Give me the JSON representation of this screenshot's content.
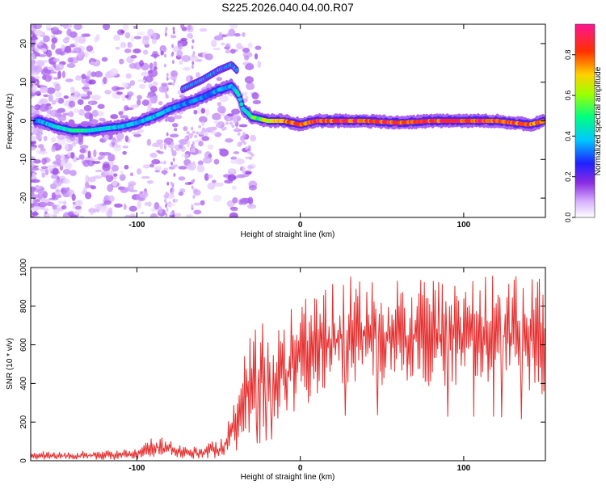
{
  "title": "S225.2026.040.04.00.R07",
  "colors": {
    "line": "#e53030",
    "axis": "#000000",
    "background": "#ffffff"
  },
  "chart_data": [
    {
      "type": "heatmap",
      "xlabel": "Height of straight line (km)",
      "ylabel": "Frequency (Hz)",
      "xlim": [
        -165,
        150
      ],
      "ylim": [
        -25,
        25
      ],
      "xticks": [
        -100,
        0,
        100
      ],
      "yticks": [
        -20,
        -10,
        0,
        10,
        20
      ],
      "colorbar": {
        "label": "Normalized spectral amplitude",
        "range": [
          0,
          0.95
        ],
        "ticks": [
          0.0,
          0.2,
          0.4,
          0.6,
          0.8
        ],
        "colormap": "white-purple-blue-cyan-green-yellow-red-magenta"
      },
      "ridge": {
        "x": [
          -160,
          -150,
          -140,
          -130,
          -120,
          -110,
          -100,
          -90,
          -80,
          -70,
          -60,
          -50,
          -42,
          -38,
          -35,
          -32,
          -30,
          -25,
          -20,
          -10,
          0,
          10,
          20,
          40,
          60,
          80,
          100,
          120,
          140,
          150
        ],
        "y": [
          0,
          -1.5,
          -2.5,
          -2.5,
          -2,
          -1.5,
          -0.5,
          1,
          3,
          4.5,
          6,
          8,
          9,
          7,
          3,
          2,
          1,
          0.5,
          0,
          0,
          -1,
          0,
          0,
          0,
          -0.5,
          0,
          0,
          0,
          -1,
          0
        ],
        "amplitude": [
          0.35,
          0.45,
          0.5,
          0.5,
          0.45,
          0.4,
          0.4,
          0.4,
          0.38,
          0.35,
          0.35,
          0.38,
          0.4,
          0.45,
          0.45,
          0.5,
          0.55,
          0.6,
          0.7,
          0.8,
          0.85,
          0.9,
          0.9,
          0.9,
          0.9,
          0.9,
          0.9,
          0.9,
          0.85,
          0.8
        ]
      }
    },
    {
      "type": "line",
      "xlabel": "Height of straight line (km)",
      "ylabel": "SNR (10 * v/v)",
      "xlim": [
        -165,
        150
      ],
      "ylim": [
        0,
        1000
      ],
      "xticks": [
        -100,
        0,
        100
      ],
      "yticks": [
        0,
        200,
        400,
        600,
        800,
        1000
      ],
      "envelope": {
        "x": [
          -165,
          -140,
          -120,
          -100,
          -95,
          -90,
          -80,
          -70,
          -60,
          -50,
          -45,
          -40,
          -35,
          -30,
          -25,
          -20,
          -10,
          0,
          10,
          20,
          30,
          40,
          60,
          80,
          100,
          120,
          140,
          150
        ],
        "lo": [
          5,
          5,
          5,
          5,
          10,
          20,
          20,
          10,
          10,
          15,
          30,
          80,
          120,
          150,
          150,
          180,
          200,
          250,
          300,
          350,
          400,
          400,
          380,
          380,
          380,
          380,
          350,
          300
        ],
        "hi": [
          50,
          50,
          55,
          60,
          90,
          130,
          120,
          70,
          80,
          120,
          160,
          380,
          550,
          700,
          750,
          650,
          720,
          880,
          900,
          950,
          980,
          950,
          950,
          950,
          950,
          980,
          980,
          1000
        ]
      }
    }
  ]
}
